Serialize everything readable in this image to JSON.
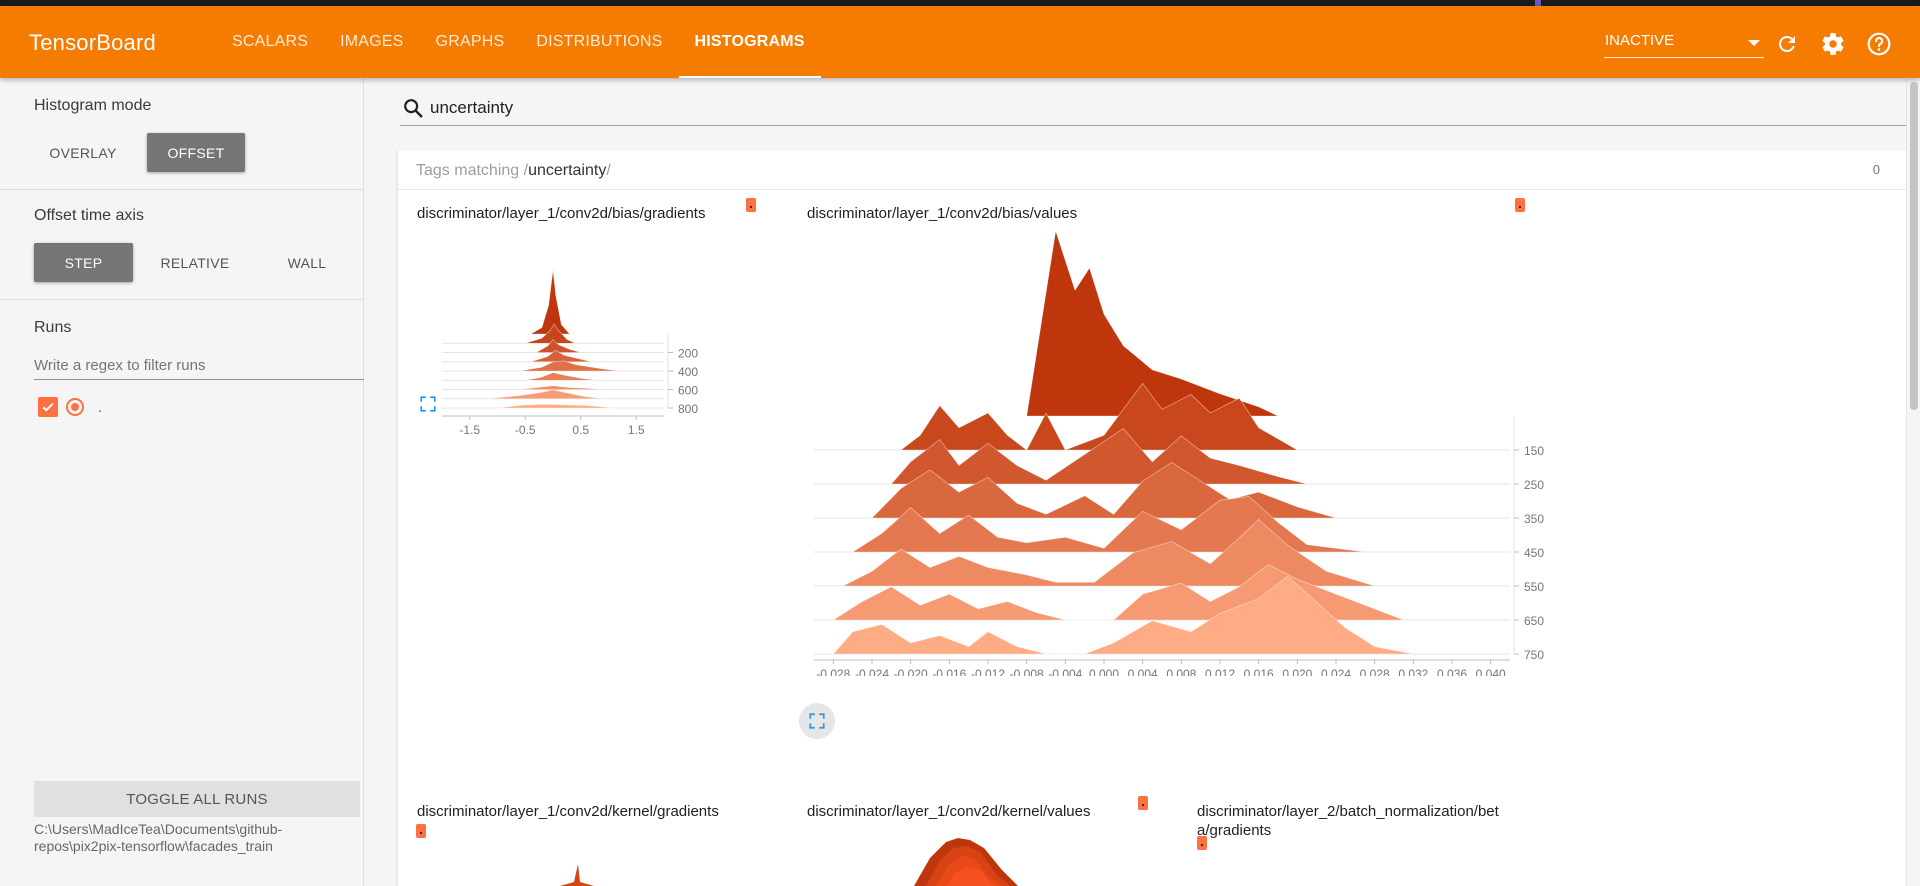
{
  "app": {
    "title": "TensorBoard"
  },
  "tabs": [
    {
      "label": "SCALARS",
      "active": false
    },
    {
      "label": "IMAGES",
      "active": false
    },
    {
      "label": "GRAPHS",
      "active": false
    },
    {
      "label": "DISTRIBUTIONS",
      "active": false
    },
    {
      "label": "HISTOGRAMS",
      "active": true
    }
  ],
  "toolbar": {
    "run_select": "INACTIVE",
    "icons": [
      "refresh-icon",
      "settings-icon",
      "help-icon"
    ]
  },
  "sidebar": {
    "histogram_mode": {
      "title": "Histogram mode",
      "options": [
        "OVERLAY",
        "OFFSET"
      ],
      "selected": "OFFSET"
    },
    "offset_time_axis": {
      "title": "Offset time axis",
      "options": [
        "STEP",
        "RELATIVE",
        "WALL"
      ],
      "selected": "STEP"
    },
    "runs": {
      "title": "Runs",
      "filter_placeholder": "Write a regex to filter runs",
      "items": [
        {
          "name": ".",
          "checked": true
        }
      ]
    },
    "toggle_all_label": "TOGGLE ALL RUNS",
    "logdir": "C:\\Users\\MadIceTea\\Documents\\github-repos\\pix2pix-tensorflow\\facades_train"
  },
  "search": {
    "value": "uncertainty"
  },
  "tag_pane": {
    "prefix": "Tags matching /",
    "query": "uncertainty",
    "suffix": "/",
    "count": "0"
  },
  "colors": {
    "accent": "#f57c00",
    "run": "#ff7043"
  },
  "cards": [
    {
      "title": "discriminator/layer_1/conv2d/bias/gradients",
      "chart_data": {
        "type": "area",
        "mode": "offset",
        "x_ticks": [
          "-1.5",
          "-0.5",
          "0.5",
          "1.5"
        ],
        "xlim": [
          -2.0,
          2.0
        ],
        "step_ticks": [
          "200",
          "400",
          "600",
          "800"
        ],
        "steps": [
          0,
          100,
          200,
          300,
          400,
          500,
          600,
          700,
          800
        ],
        "series": [
          {
            "step": 0,
            "points": [
              [
                -0.4,
                0
              ],
              [
                -0.2,
                0.1
              ],
              [
                -0.08,
                0.45
              ],
              [
                0,
                1.0
              ],
              [
                0.05,
                0.6
              ],
              [
                0.15,
                0.15
              ],
              [
                0.3,
                0
              ]
            ]
          },
          {
            "step": 100,
            "points": [
              [
                -0.5,
                0
              ],
              [
                -0.2,
                0.08
              ],
              [
                -0.05,
                0.2
              ],
              [
                0.02,
                0.3
              ],
              [
                0.1,
                0.2
              ],
              [
                0.25,
                0.06
              ],
              [
                0.4,
                0
              ]
            ]
          },
          {
            "step": 200,
            "points": [
              [
                -0.3,
                0
              ],
              [
                -0.1,
                0.1
              ],
              [
                0.0,
                0.2
              ],
              [
                0.1,
                0.12
              ],
              [
                0.3,
                0.05
              ],
              [
                0.5,
                0
              ]
            ]
          },
          {
            "step": 300,
            "points": [
              [
                -0.4,
                0
              ],
              [
                -0.1,
                0.08
              ],
              [
                0.05,
                0.18
              ],
              [
                0.2,
                0.1
              ],
              [
                0.5,
                0.04
              ],
              [
                0.7,
                0
              ]
            ]
          },
          {
            "step": 400,
            "points": [
              [
                -0.6,
                0
              ],
              [
                -0.2,
                0.06
              ],
              [
                0.0,
                0.14
              ],
              [
                0.2,
                0.16
              ],
              [
                0.4,
                0.1
              ],
              [
                0.7,
                0.06
              ],
              [
                1.0,
                0.02
              ],
              [
                1.2,
                0
              ]
            ]
          },
          {
            "step": 500,
            "points": [
              [
                -0.5,
                0
              ],
              [
                -0.2,
                0.05
              ],
              [
                0.0,
                0.12
              ],
              [
                0.2,
                0.08
              ],
              [
                0.5,
                0.03
              ],
              [
                0.8,
                0
              ]
            ]
          },
          {
            "step": 600,
            "points": [
              [
                -0.6,
                0
              ],
              [
                -0.3,
                0.03
              ],
              [
                0.0,
                0.06
              ],
              [
                0.3,
                0.03
              ],
              [
                0.6,
                0.02
              ],
              [
                0.9,
                0
              ]
            ]
          },
          {
            "step": 700,
            "points": [
              [
                -1.2,
                0
              ],
              [
                -0.6,
                0.05
              ],
              [
                -0.2,
                0.1
              ],
              [
                0.0,
                0.14
              ],
              [
                0.2,
                0.1
              ],
              [
                0.6,
                0.03
              ],
              [
                0.9,
                0
              ]
            ]
          },
          {
            "step": 800,
            "points": [
              [
                -1.0,
                0
              ],
              [
                -0.6,
                0.04
              ],
              [
                -0.2,
                0.06
              ],
              [
                0.2,
                0.05
              ],
              [
                0.6,
                0.04
              ],
              [
                1.1,
                0
              ]
            ]
          }
        ]
      }
    },
    {
      "title": "discriminator/layer_1/conv2d/bias/values",
      "chart_data": {
        "type": "area",
        "mode": "offset",
        "x_ticks": [
          "-0.028",
          "-0.024",
          "-0.020",
          "-0.016",
          "-0.012",
          "-0.008",
          "-0.004",
          "0.000",
          "0.004",
          "0.008",
          "0.012",
          "0.016",
          "0.020",
          "0.024",
          "0.028",
          "0.032",
          "0.036",
          "0.040"
        ],
        "xlim": [
          -0.03,
          0.042
        ],
        "step_ticks": [
          "150",
          "250",
          "350",
          "450",
          "550",
          "650",
          "750"
        ],
        "steps": [
          50,
          150,
          250,
          350,
          450,
          550,
          650,
          750
        ],
        "series": [
          {
            "step": 50,
            "points": [
              [
                -0.008,
                0
              ],
              [
                -0.005,
                1.0
              ],
              [
                -0.003,
                0.68
              ],
              [
                -0.0015,
                0.8
              ],
              [
                0.0,
                0.55
              ],
              [
                0.002,
                0.38
              ],
              [
                0.005,
                0.25
              ],
              [
                0.008,
                0.2
              ],
              [
                0.012,
                0.12
              ],
              [
                0.016,
                0.05
              ],
              [
                0.018,
                0
              ]
            ]
          },
          {
            "step": 150,
            "points": [
              [
                -0.021,
                0
              ],
              [
                -0.019,
                0.08
              ],
              [
                -0.017,
                0.24
              ],
              [
                -0.015,
                0.12
              ],
              [
                -0.012,
                0.2
              ],
              [
                -0.01,
                0.08
              ],
              [
                -0.008,
                0
              ],
              [
                -0.006,
                0.2
              ],
              [
                -0.004,
                0
              ],
              [
                0.0,
                0.08
              ],
              [
                0.004,
                0.36
              ],
              [
                0.006,
                0.22
              ],
              [
                0.009,
                0.3
              ],
              [
                0.011,
                0.2
              ],
              [
                0.014,
                0.28
              ],
              [
                0.016,
                0.12
              ],
              [
                0.02,
                0
              ]
            ]
          },
          {
            "step": 250,
            "points": [
              [
                -0.022,
                0
              ],
              [
                -0.02,
                0.12
              ],
              [
                -0.017,
                0.24
              ],
              [
                -0.015,
                0.1
              ],
              [
                -0.012,
                0.22
              ],
              [
                -0.009,
                0.1
              ],
              [
                -0.006,
                0.02
              ],
              [
                -0.002,
                0.16
              ],
              [
                0.002,
                0.3
              ],
              [
                0.005,
                0.12
              ],
              [
                0.008,
                0.26
              ],
              [
                0.011,
                0.14
              ],
              [
                0.014,
                0.1
              ],
              [
                0.018,
                0.04
              ],
              [
                0.021,
                0
              ]
            ]
          },
          {
            "step": 350,
            "points": [
              [
                -0.024,
                0
              ],
              [
                -0.021,
                0.16
              ],
              [
                -0.018,
                0.26
              ],
              [
                -0.015,
                0.14
              ],
              [
                -0.012,
                0.22
              ],
              [
                -0.009,
                0.08
              ],
              [
                -0.006,
                0.02
              ],
              [
                -0.002,
                0.12
              ],
              [
                0.001,
                0.02
              ],
              [
                0.004,
                0.2
              ],
              [
                0.007,
                0.3
              ],
              [
                0.01,
                0.2
              ],
              [
                0.013,
                0.1
              ],
              [
                0.016,
                0.14
              ],
              [
                0.02,
                0.06
              ],
              [
                0.024,
                0
              ]
            ]
          },
          {
            "step": 450,
            "points": [
              [
                -0.026,
                0
              ],
              [
                -0.023,
                0.1
              ],
              [
                -0.02,
                0.24
              ],
              [
                -0.017,
                0.1
              ],
              [
                -0.014,
                0.2
              ],
              [
                -0.011,
                0.08
              ],
              [
                -0.008,
                0.05
              ],
              [
                -0.004,
                0.08
              ],
              [
                0.0,
                0.02
              ],
              [
                0.004,
                0.22
              ],
              [
                0.008,
                0.12
              ],
              [
                0.012,
                0.28
              ],
              [
                0.015,
                0.3
              ],
              [
                0.018,
                0.16
              ],
              [
                0.021,
                0.04
              ],
              [
                0.027,
                0
              ]
            ]
          },
          {
            "step": 550,
            "points": [
              [
                -0.027,
                0
              ],
              [
                -0.024,
                0.08
              ],
              [
                -0.021,
                0.2
              ],
              [
                -0.018,
                0.1
              ],
              [
                -0.015,
                0.16
              ],
              [
                -0.012,
                0.1
              ],
              [
                -0.008,
                0.06
              ],
              [
                -0.005,
                0.02
              ],
              [
                -0.001,
                0.02
              ],
              [
                0.003,
                0.18
              ],
              [
                0.007,
                0.24
              ],
              [
                0.011,
                0.12
              ],
              [
                0.014,
                0.26
              ],
              [
                0.016,
                0.36
              ],
              [
                0.019,
                0.22
              ],
              [
                0.023,
                0.08
              ],
              [
                0.028,
                0
              ]
            ]
          },
          {
            "step": 650,
            "points": [
              [
                -0.028,
                0
              ],
              [
                -0.025,
                0.1
              ],
              [
                -0.022,
                0.18
              ],
              [
                -0.019,
                0.08
              ],
              [
                -0.016,
                0.14
              ],
              [
                -0.013,
                0.06
              ],
              [
                -0.01,
                0.1
              ],
              [
                -0.007,
                0.04
              ],
              [
                -0.004,
                0
              ],
              [
                0.001,
                0
              ],
              [
                0.004,
                0.14
              ],
              [
                0.008,
                0.2
              ],
              [
                0.011,
                0.1
              ],
              [
                0.014,
                0.18
              ],
              [
                0.017,
                0.3
              ],
              [
                0.02,
                0.22
              ],
              [
                0.024,
                0.14
              ],
              [
                0.029,
                0.04
              ],
              [
                0.031,
                0
              ]
            ]
          },
          {
            "step": 750,
            "points": [
              [
                -0.028,
                0
              ],
              [
                -0.026,
                0.12
              ],
              [
                -0.023,
                0.16
              ],
              [
                -0.02,
                0.06
              ],
              [
                -0.017,
                0.1
              ],
              [
                -0.014,
                0.04
              ],
              [
                -0.012,
                0.12
              ],
              [
                -0.009,
                0.04
              ],
              [
                -0.006,
                0
              ],
              [
                -0.002,
                0
              ],
              [
                0.001,
                0.06
              ],
              [
                0.005,
                0.18
              ],
              [
                0.009,
                0.12
              ],
              [
                0.012,
                0.22
              ],
              [
                0.016,
                0.3
              ],
              [
                0.019,
                0.42
              ],
              [
                0.022,
                0.28
              ],
              [
                0.025,
                0.14
              ],
              [
                0.028,
                0.04
              ],
              [
                0.032,
                0
              ]
            ]
          }
        ]
      }
    },
    {
      "title": "discriminator/layer_1/conv2d/kernel/gradients"
    },
    {
      "title": "discriminator/layer_1/conv2d/kernel/values"
    },
    {
      "title_line1": "discriminator/layer_2/batch_normalization/bet",
      "title_line2": "a/gradients"
    }
  ]
}
